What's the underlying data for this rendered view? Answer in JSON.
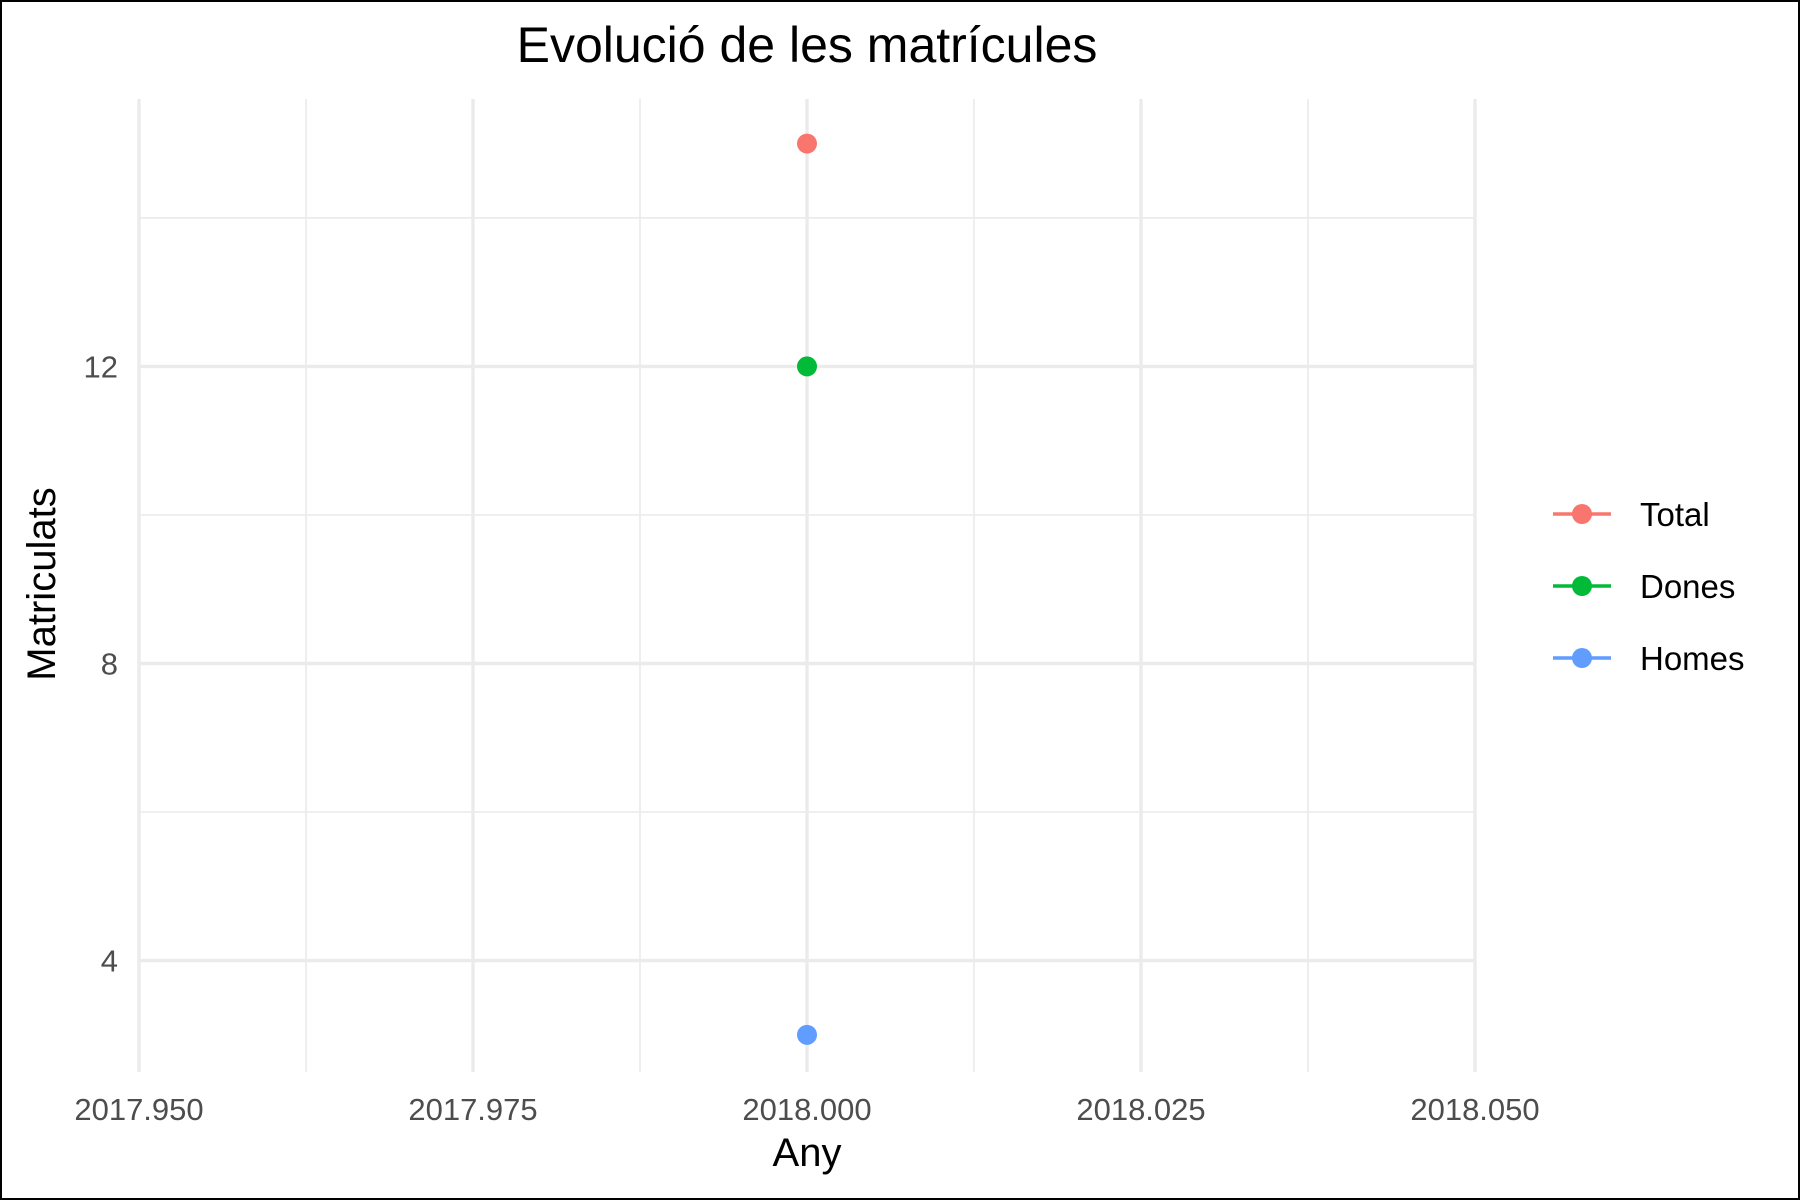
{
  "chart_data": {
    "type": "line",
    "title": "Evolució de les matrícules",
    "xlabel": "Any",
    "ylabel": "Matriculats",
    "x": [
      2018
    ],
    "xlim": [
      2017.95,
      2018.05
    ],
    "x_ticks": [
      "2017.950",
      "2017.975",
      "2018.000",
      "2018.025",
      "2018.050"
    ],
    "ylim": [
      2.5,
      15.6
    ],
    "y_ticks": [
      4,
      8,
      12
    ],
    "grid": true,
    "legend_position": "right",
    "series": [
      {
        "name": "Total",
        "color": "#F8766D",
        "values": [
          15
        ]
      },
      {
        "name": "Dones",
        "color": "#00BA38",
        "values": [
          12
        ]
      },
      {
        "name": "Homes",
        "color": "#619CFF",
        "values": [
          3
        ]
      }
    ]
  }
}
